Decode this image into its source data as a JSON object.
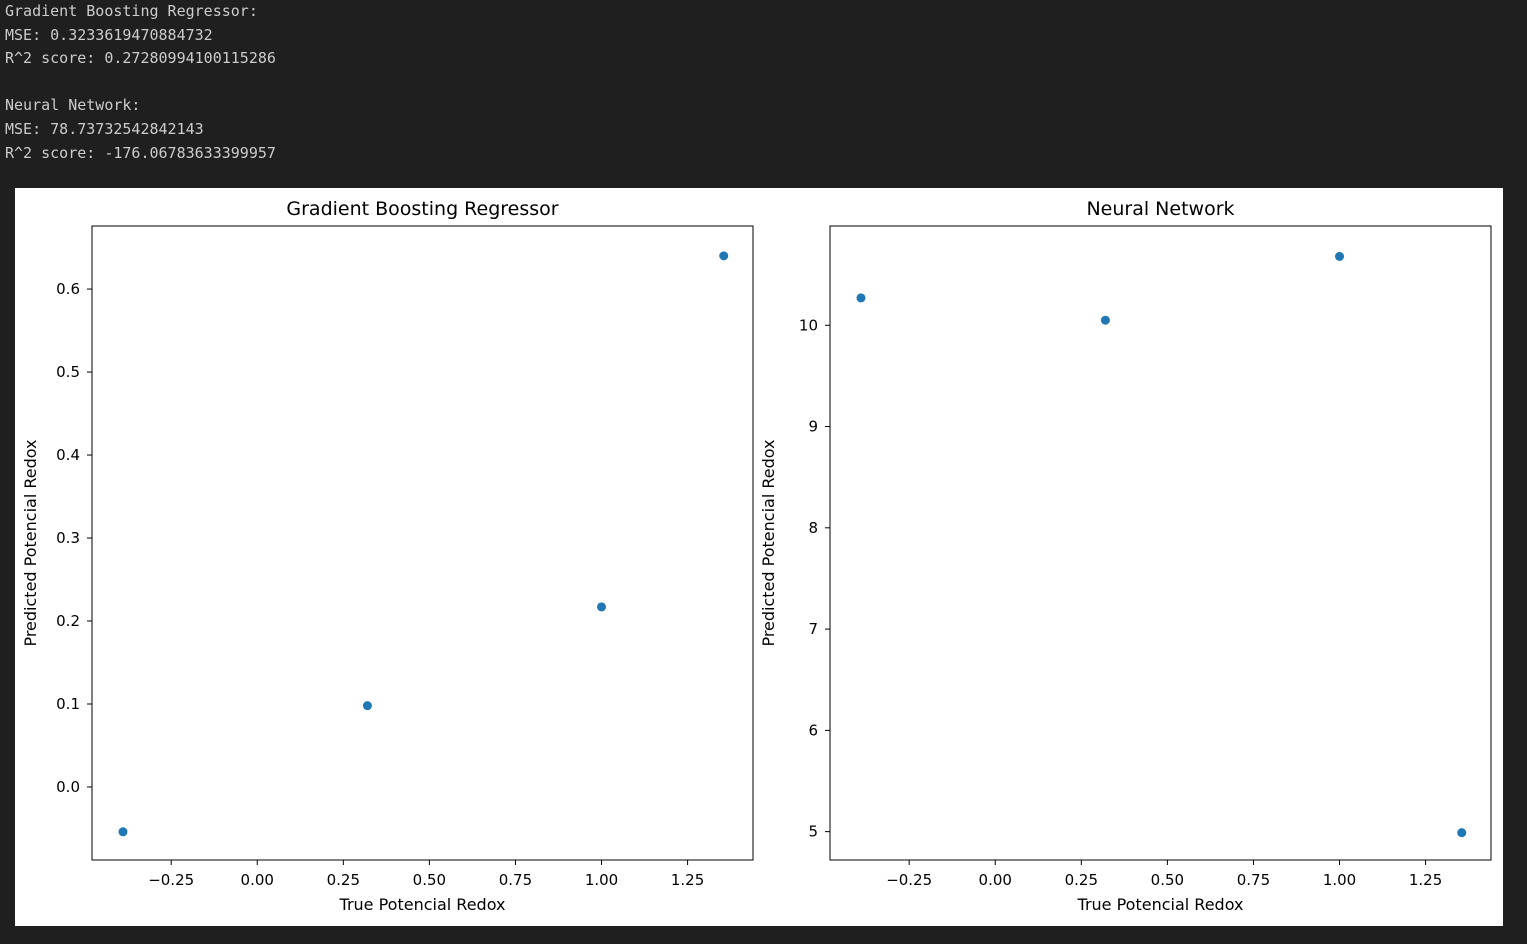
{
  "console": {
    "lines": [
      "Gradient Boosting Regressor:",
      "MSE: 0.3233619470884732",
      "R^2 score: 0.27280994100115286",
      "",
      "Neural Network:",
      "MSE: 78.73732542842143",
      "R^2 score: -176.06783633399957"
    ]
  },
  "colors": {
    "background": "#1f1f1f",
    "console_text": "#cccccc",
    "point": "#1f77b4"
  },
  "chart_data": [
    {
      "type": "scatter",
      "title": "Gradient Boosting Regressor",
      "xlabel": "True Potencial Redox",
      "ylabel": "Predicted Potencial Redox",
      "xlim": [
        -0.48,
        1.44
      ],
      "ylim": [
        -0.088,
        0.676
      ],
      "xticks": [
        -0.25,
        0.0,
        0.25,
        0.5,
        0.75,
        1.0,
        1.25
      ],
      "xtick_labels": [
        "−0.25",
        "0.00",
        "0.25",
        "0.50",
        "0.75",
        "1.00",
        "1.25"
      ],
      "yticks": [
        0.0,
        0.1,
        0.2,
        0.3,
        0.4,
        0.5,
        0.6
      ],
      "ytick_labels": [
        "0.0",
        "0.1",
        "0.2",
        "0.3",
        "0.4",
        "0.5",
        "0.6"
      ],
      "points": [
        {
          "x": -0.39,
          "y": -0.054
        },
        {
          "x": 0.32,
          "y": 0.098
        },
        {
          "x": 1.0,
          "y": 0.217
        },
        {
          "x": 1.355,
          "y": 0.64
        }
      ],
      "grid": false
    },
    {
      "type": "scatter",
      "title": "Neural Network",
      "xlabel": "True Potencial Redox",
      "ylabel": "Predicted Potencial Redox",
      "xlim": [
        -0.48,
        1.44
      ],
      "ylim": [
        4.72,
        10.98
      ],
      "xticks": [
        -0.25,
        0.0,
        0.25,
        0.5,
        0.75,
        1.0,
        1.25
      ],
      "xtick_labels": [
        "−0.25",
        "0.00",
        "0.25",
        "0.50",
        "0.75",
        "1.00",
        "1.25"
      ],
      "yticks": [
        5,
        6,
        7,
        8,
        9,
        10
      ],
      "ytick_labels": [
        "5",
        "6",
        "7",
        "8",
        "9",
        "10"
      ],
      "points": [
        {
          "x": -0.39,
          "y": 10.27
        },
        {
          "x": 0.32,
          "y": 10.05
        },
        {
          "x": 1.0,
          "y": 10.68
        },
        {
          "x": 1.355,
          "y": 4.99
        }
      ],
      "grid": false
    }
  ]
}
